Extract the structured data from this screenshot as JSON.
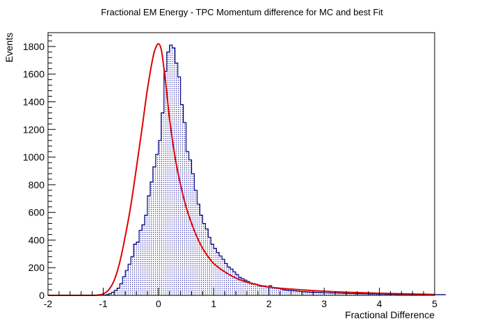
{
  "chart_data": {
    "type": "histogram",
    "title": "Fractional EM Energy - TPC Momentum difference for MC and best Fit",
    "xlabel": "Fractional Difference",
    "ylabel": "Events",
    "xlim": [
      -2,
      5
    ],
    "ylim": [
      0,
      1900
    ],
    "x_ticks": [
      -2,
      -1,
      0,
      1,
      2,
      3,
      4,
      5
    ],
    "x_tick_labels": [
      "-2",
      "-1",
      "0",
      "1",
      "2",
      "3",
      "4",
      "5"
    ],
    "y_ticks": [
      0,
      200,
      400,
      600,
      800,
      1000,
      1200,
      1400,
      1600,
      1800
    ],
    "y_tick_labels": [
      "0",
      "200",
      "400",
      "600",
      "800",
      "1000",
      "1200",
      "1400",
      "1600",
      "1800"
    ],
    "grid": false,
    "legend": "none",
    "series": [
      {
        "kind": "histogram",
        "bin_start": -2.0,
        "bin_width": 0.05,
        "colors": {
          "stroke": "#000080",
          "hatch": "#2a2aa8"
        },
        "values": [
          0,
          0,
          0,
          0,
          0,
          0,
          0,
          0,
          0,
          0,
          0,
          0,
          0,
          0,
          0,
          0,
          0,
          0,
          0,
          1,
          2,
          5,
          12,
          22,
          35,
          52,
          85,
          135,
          180,
          225,
          280,
          370,
          385,
          470,
          510,
          580,
          720,
          820,
          930,
          1020,
          1120,
          1320,
          1620,
          1760,
          1810,
          1790,
          1680,
          1580,
          1380,
          1250,
          1040,
          980,
          880,
          760,
          660,
          580,
          520,
          480,
          420,
          370,
          340,
          310,
          285,
          260,
          230,
          205,
          190,
          170,
          150,
          130,
          120,
          110,
          100,
          90,
          85,
          80,
          70,
          65,
          68,
          60,
          70,
          55,
          52,
          50,
          45,
          40,
          38,
          35,
          34,
          32,
          30,
          28,
          27,
          25,
          24,
          23,
          22,
          21,
          20,
          19,
          18,
          18,
          17,
          16,
          16,
          15,
          15,
          14,
          14,
          13,
          13,
          12,
          12,
          12,
          11,
          11,
          10,
          10,
          10,
          9,
          9,
          9,
          8,
          8,
          8,
          8,
          7,
          7,
          7,
          7,
          7,
          6,
          6,
          6,
          6,
          6,
          6,
          6,
          5,
          5,
          5,
          5,
          5,
          5
        ]
      },
      {
        "kind": "fit",
        "name": "",
        "color": "#e00000",
        "x": [
          -2.0,
          -1.5,
          -1.2,
          -1.1,
          -1.0,
          -0.9,
          -0.8,
          -0.7,
          -0.6,
          -0.5,
          -0.4,
          -0.3,
          -0.2,
          -0.1,
          -0.05,
          0.0,
          0.05,
          0.1,
          0.15,
          0.2,
          0.3,
          0.4,
          0.5,
          0.6,
          0.7,
          0.8,
          0.9,
          1.0,
          1.2,
          1.4,
          1.6,
          1.8,
          2.0,
          2.4,
          2.8,
          3.2,
          3.6,
          4.0,
          4.4,
          4.8,
          5.0
        ],
        "y": [
          0,
          0,
          0,
          2,
          10,
          40,
          110,
          240,
          430,
          650,
          920,
          1200,
          1490,
          1720,
          1790,
          1820,
          1780,
          1640,
          1470,
          1280,
          1000,
          800,
          640,
          520,
          420,
          340,
          280,
          230,
          170,
          125,
          95,
          75,
          60,
          45,
          34,
          26,
          20,
          15,
          11,
          8,
          6
        ]
      }
    ]
  }
}
